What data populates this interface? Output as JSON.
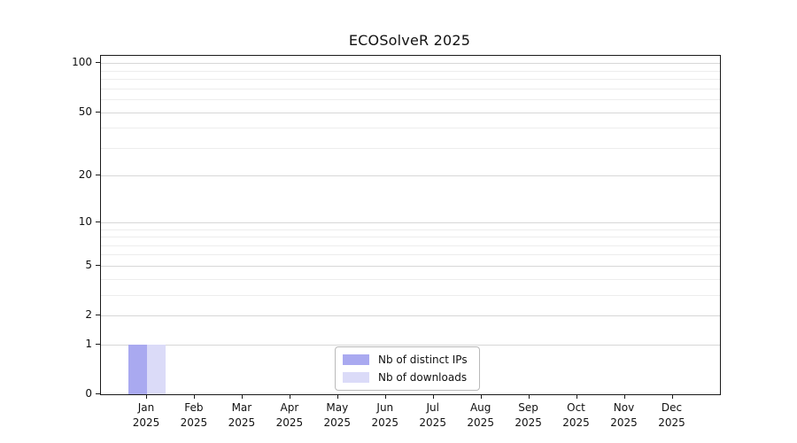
{
  "chart_data": {
    "type": "bar",
    "title": "ECOSolveR 2025",
    "categories": [
      {
        "month": "Jan",
        "year": "2025"
      },
      {
        "month": "Feb",
        "year": "2025"
      },
      {
        "month": "Mar",
        "year": "2025"
      },
      {
        "month": "Apr",
        "year": "2025"
      },
      {
        "month": "May",
        "year": "2025"
      },
      {
        "month": "Jun",
        "year": "2025"
      },
      {
        "month": "Jul",
        "year": "2025"
      },
      {
        "month": "Aug",
        "year": "2025"
      },
      {
        "month": "Sep",
        "year": "2025"
      },
      {
        "month": "Oct",
        "year": "2025"
      },
      {
        "month": "Nov",
        "year": "2025"
      },
      {
        "month": "Dec",
        "year": "2025"
      }
    ],
    "series": [
      {
        "name": "Nb of distinct IPs",
        "color": "#a9a9f0",
        "values": [
          1,
          0,
          0,
          0,
          0,
          0,
          0,
          0,
          0,
          0,
          0,
          0
        ]
      },
      {
        "name": "Nb of downloads",
        "color": "#dbdbf8",
        "values": [
          1,
          0,
          0,
          0,
          0,
          0,
          0,
          0,
          0,
          0,
          0,
          0
        ]
      }
    ],
    "xlabel": "",
    "ylabel": "",
    "y_axis": {
      "scale": "log1p",
      "ticks": [
        0,
        1,
        2,
        5,
        10,
        20,
        50,
        100
      ],
      "minor_gridlines": [
        3,
        4,
        6,
        7,
        8,
        9,
        30,
        40,
        60,
        70,
        80,
        90
      ],
      "ylim": [
        0,
        110
      ]
    },
    "legend_position": "lower center",
    "grid": true
  },
  "colors": {
    "axis": "#1a1a1a",
    "grid_major": "#d7d7d7",
    "grid_minor": "#ededed",
    "background": "#ffffff"
  }
}
